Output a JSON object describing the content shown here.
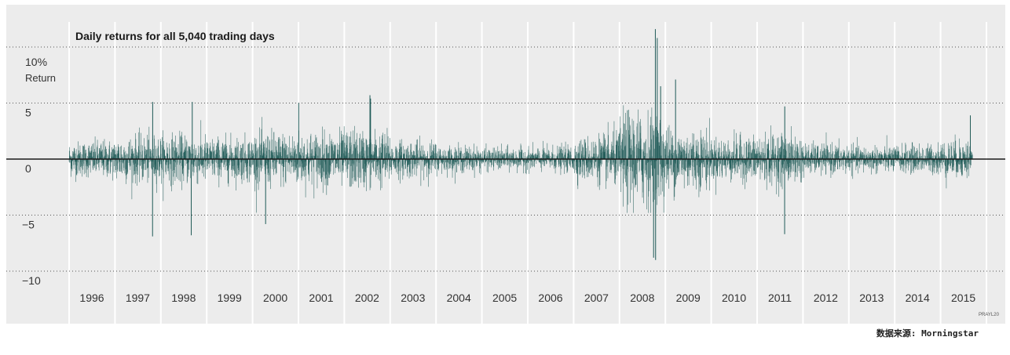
{
  "chart_data": {
    "type": "bar",
    "title": "Daily returns for all 5,040 trading days",
    "ylabel": "Return",
    "y_ticks": [
      {
        "value": 10,
        "label": "10%"
      },
      {
        "value": 5,
        "label": "5"
      },
      {
        "value": 0,
        "label": "0"
      },
      {
        "value": -5,
        "label": "−5"
      },
      {
        "value": -10,
        "label": "−10"
      }
    ],
    "ylim": [
      -10,
      10
    ],
    "xlim": [
      1996,
      2016
    ],
    "x_tick_labels": [
      "1996",
      "1997",
      "1998",
      "1999",
      "2000",
      "2001",
      "2002",
      "2003",
      "2004",
      "2005",
      "2006",
      "2007",
      "2008",
      "2009",
      "2010",
      "2011",
      "2012",
      "2013",
      "2014",
      "2015"
    ],
    "grid": {
      "vertical": true,
      "horizontal": "dotted",
      "zero_line": true
    },
    "legend": "none",
    "colors": {
      "bars": "#1f5a57",
      "background": "#ececec",
      "gridline": "#ffffff",
      "zero_line": "#1a1a1a"
    },
    "n_days": 5040,
    "yearly_volatility": [
      {
        "year": "1996",
        "typical_abs_return": 0.9
      },
      {
        "year": "1997",
        "typical_abs_return": 1.2
      },
      {
        "year": "1998",
        "typical_abs_return": 1.3
      },
      {
        "year": "1999",
        "typical_abs_return": 1.1
      },
      {
        "year": "2000",
        "typical_abs_return": 1.4
      },
      {
        "year": "2001",
        "typical_abs_return": 1.4
      },
      {
        "year": "2002",
        "typical_abs_return": 1.6
      },
      {
        "year": "2003",
        "typical_abs_return": 1.0
      },
      {
        "year": "2004",
        "typical_abs_return": 0.7
      },
      {
        "year": "2005",
        "typical_abs_return": 0.6
      },
      {
        "year": "2006",
        "typical_abs_return": 0.6
      },
      {
        "year": "2007",
        "typical_abs_return": 1.0
      },
      {
        "year": "2008",
        "typical_abs_return": 2.6
      },
      {
        "year": "2009",
        "typical_abs_return": 1.7
      },
      {
        "year": "2010",
        "typical_abs_return": 1.1
      },
      {
        "year": "2011",
        "typical_abs_return": 1.4
      },
      {
        "year": "2012",
        "typical_abs_return": 0.8
      },
      {
        "year": "2013",
        "typical_abs_return": 0.7
      },
      {
        "year": "2014",
        "typical_abs_return": 0.7
      },
      {
        "year": "2015",
        "typical_abs_return": 1.0
      }
    ],
    "extremes": [
      {
        "date": "1997-10-27",
        "value": -6.9
      },
      {
        "date": "1997-10-28",
        "value": 5.1
      },
      {
        "date": "1998-08-31",
        "value": -6.8
      },
      {
        "date": "1998-09-08",
        "value": 5.1
      },
      {
        "date": "2000-04-14",
        "value": -5.8
      },
      {
        "date": "2001-01-03",
        "value": 5.0
      },
      {
        "date": "2002-07-24",
        "value": 5.7
      },
      {
        "date": "2002-07-29",
        "value": 5.4
      },
      {
        "date": "2008-09-29",
        "value": -8.8
      },
      {
        "date": "2008-10-13",
        "value": 11.6
      },
      {
        "date": "2008-10-15",
        "value": -9.0
      },
      {
        "date": "2008-10-28",
        "value": 10.8
      },
      {
        "date": "2008-11-24",
        "value": 6.5
      },
      {
        "date": "2009-03-23",
        "value": 7.1
      },
      {
        "date": "2011-08-08",
        "value": -6.7
      },
      {
        "date": "2011-08-09",
        "value": 4.7
      },
      {
        "date": "2015-08-26",
        "value": 3.9
      }
    ],
    "credit": "PRAYL20"
  },
  "source_note": "数据来源: Morningstar"
}
